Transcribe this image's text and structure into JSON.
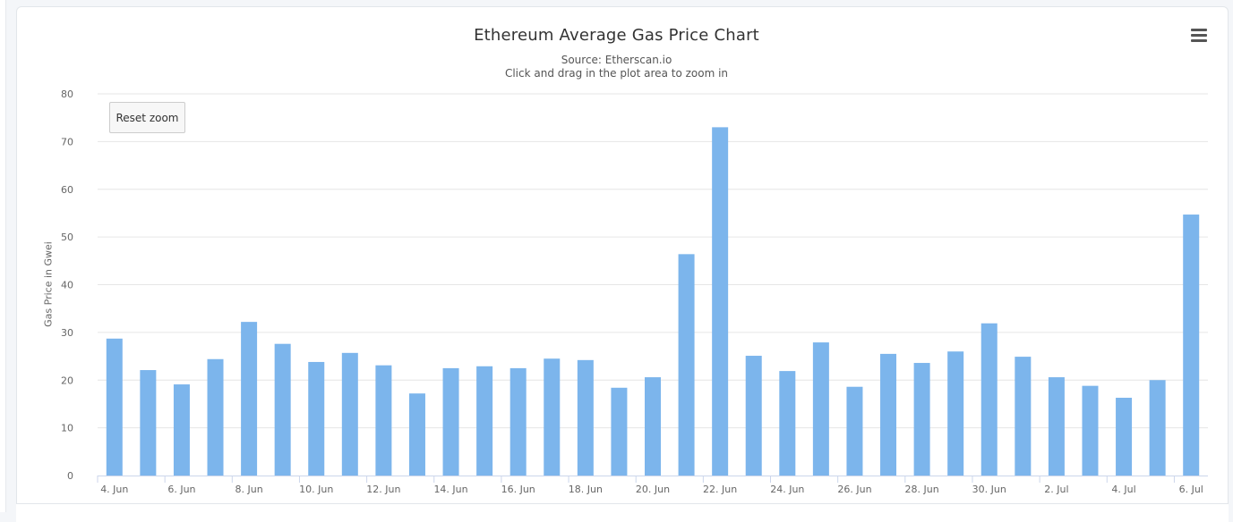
{
  "chart_data": {
    "type": "bar",
    "title": "Ethereum Average Gas Price Chart",
    "subtitle": "Source: Etherscan.io",
    "subtitle2": "Click and drag in the plot area to zoom in",
    "ylabel": "Gas Price in Gwei",
    "xlabel": "",
    "ylim": [
      0,
      80
    ],
    "yticks": [
      0,
      10,
      20,
      30,
      40,
      50,
      60,
      70,
      80
    ],
    "categories": [
      "4. Jun",
      "5. Jun",
      "6. Jun",
      "7. Jun",
      "8. Jun",
      "9. Jun",
      "10. Jun",
      "11. Jun",
      "12. Jun",
      "13. Jun",
      "14. Jun",
      "15. Jun",
      "16. Jun",
      "17. Jun",
      "18. Jun",
      "19. Jun",
      "20. Jun",
      "21. Jun",
      "22. Jun",
      "23. Jun",
      "24. Jun",
      "25. Jun",
      "26. Jun",
      "27. Jun",
      "28. Jun",
      "29. Jun",
      "30. Jun",
      "1. Jul",
      "2. Jul",
      "3. Jul",
      "4. Jul",
      "5. Jul",
      "6. Jul"
    ],
    "xtick_labels": [
      "4. Jun",
      "6. Jun",
      "8. Jun",
      "10. Jun",
      "12. Jun",
      "14. Jun",
      "16. Jun",
      "18. Jun",
      "20. Jun",
      "22. Jun",
      "24. Jun",
      "26. Jun",
      "28. Jun",
      "30. Jun",
      "2. Jul",
      "4. Jul",
      "6. Jul"
    ],
    "series": [
      {
        "name": "Gas Price",
        "color": "#7cb5ec",
        "values": [
          28.7,
          22.1,
          19.1,
          24.4,
          32.2,
          27.6,
          23.8,
          25.7,
          23.1,
          17.2,
          22.5,
          22.9,
          22.5,
          24.5,
          24.2,
          18.4,
          20.6,
          46.4,
          73.0,
          25.1,
          21.9,
          27.9,
          18.6,
          25.5,
          23.6,
          26.0,
          31.9,
          24.9,
          20.6,
          18.8,
          16.3,
          20.0,
          54.7
        ]
      }
    ],
    "grid": true
  },
  "controls": {
    "reset_zoom_label": "Reset zoom"
  },
  "colors": {
    "bar": "#7cb5ec",
    "grid": "#e6e6e6",
    "axis": "#ccd6eb",
    "text": "#333333"
  }
}
